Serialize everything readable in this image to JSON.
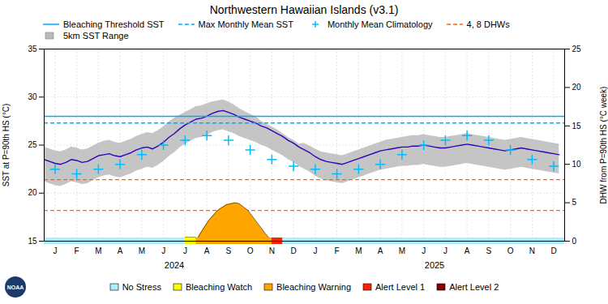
{
  "chart_data": {
    "type": "line",
    "title": "Northwestern Hawaiian Islands (v3.1)",
    "ylabel": "SST at P=90th HS (°C)",
    "y2label": "DHW from P=90th HS (°C week)",
    "xlim": [
      0,
      24
    ],
    "xticks": [
      {
        "value": 0.5,
        "label": "J"
      },
      {
        "value": 1.5,
        "label": "F"
      },
      {
        "value": 2.5,
        "label": "M"
      },
      {
        "value": 3.5,
        "label": "A"
      },
      {
        "value": 4.5,
        "label": "M"
      },
      {
        "value": 5.5,
        "label": "J"
      },
      {
        "value": 6.5,
        "label": "J"
      },
      {
        "value": 7.5,
        "label": "A"
      },
      {
        "value": 8.5,
        "label": "S"
      },
      {
        "value": 9.5,
        "label": "O"
      },
      {
        "value": 10.5,
        "label": "N"
      },
      {
        "value": 11.5,
        "label": "D"
      },
      {
        "value": 12.5,
        "label": "J"
      },
      {
        "value": 13.5,
        "label": "F"
      },
      {
        "value": 14.5,
        "label": "M"
      },
      {
        "value": 15.5,
        "label": "A"
      },
      {
        "value": 16.5,
        "label": "M"
      },
      {
        "value": 17.5,
        "label": "J"
      },
      {
        "value": 18.5,
        "label": "J"
      },
      {
        "value": 19.5,
        "label": "A"
      },
      {
        "value": 20.5,
        "label": "S"
      },
      {
        "value": 21.5,
        "label": "O"
      },
      {
        "value": 22.5,
        "label": "N"
      },
      {
        "value": 23.5,
        "label": "D"
      }
    ],
    "ylim": [
      15,
      35
    ],
    "yticks": [
      15,
      20,
      25,
      30,
      35
    ],
    "y2lim": [
      0,
      25
    ],
    "y2ticks": [
      0,
      5,
      10,
      15,
      20,
      25
    ],
    "grid": true,
    "legend": "top",
    "annotations": [
      {
        "text": "2024",
        "x": 6
      },
      {
        "text": "2025",
        "x": 18
      },
      {
        "text": "NOAA"
      }
    ],
    "series": [
      {
        "name": "Bleaching Threshold SST",
        "type": "hline",
        "color": "#00AAFF",
        "line_style": "solid",
        "values": [
          28.0
        ]
      },
      {
        "name": "Max Monthly Mean SST",
        "type": "hline",
        "color": "#00AAFF",
        "line_style": "dashed",
        "values": [
          27.3
        ]
      },
      {
        "name": "Monthly Mean Climatology",
        "type": "scatter",
        "marker": "plus",
        "color": "#00BBFF",
        "x": [
          0.5,
          1.5,
          2.5,
          3.5,
          4.5,
          5.5,
          6.5,
          7.5,
          8.5,
          9.5,
          10.5,
          11.5,
          12.5,
          13.5,
          14.5,
          15.5,
          16.5,
          17.5,
          18.5,
          19.5,
          20.5,
          21.5,
          22.5,
          23.5
        ],
        "values": [
          22.5,
          22.0,
          22.5,
          23.0,
          24.0,
          25.0,
          25.5,
          26.0,
          25.5,
          24.5,
          23.5,
          22.8,
          22.5,
          22.0,
          22.5,
          23.0,
          24.0,
          25.0,
          25.5,
          26.0,
          25.5,
          24.5,
          23.5,
          22.8
        ]
      },
      {
        "name": "4, 8 DHWs",
        "type": "hline",
        "axis": "y2",
        "color": "#FF6600",
        "line_style": "dashed",
        "values": [
          8,
          4
        ]
      },
      {
        "name": "5km SST Range",
        "type": "area",
        "color": "#BBBBBB",
        "x": [
          0,
          0.25,
          0.5,
          0.75,
          1,
          1.25,
          1.5,
          1.75,
          2,
          2.25,
          2.5,
          2.75,
          3,
          3.25,
          3.5,
          3.75,
          4,
          4.25,
          4.5,
          4.75,
          5,
          5.25,
          5.5,
          5.75,
          6,
          6.25,
          6.5,
          6.75,
          7,
          7.25,
          7.5,
          7.75,
          8,
          8.25,
          8.5,
          8.75,
          9,
          9.25,
          9.5,
          9.75,
          10,
          10.25,
          10.5,
          10.75,
          11,
          11.25,
          11.5,
          11.75,
          12,
          12.25,
          12.5,
          12.75,
          13,
          13.25,
          13.5,
          13.75,
          14,
          14.25,
          14.5,
          14.75,
          15,
          15.25,
          15.5,
          15.75,
          16,
          16.25,
          16.5,
          16.75,
          17,
          17.25,
          17.5,
          17.75,
          18,
          18.25,
          18.5,
          18.75,
          19,
          19.25,
          19.5,
          19.75,
          20,
          20.25,
          20.5,
          20.75,
          21,
          21.25,
          21.5,
          21.75,
          22,
          22.25,
          22.5,
          22.75,
          23,
          23.25,
          23.5,
          23.75
        ],
        "upper": [
          24.8,
          24.6,
          24.4,
          24.3,
          24.5,
          24.8,
          24.7,
          24.5,
          24.6,
          24.9,
          25.2,
          25.4,
          25.5,
          25.3,
          25.2,
          25.4,
          25.6,
          25.9,
          26.1,
          26.3,
          26.2,
          26.5,
          26.9,
          27.4,
          27.8,
          28.1,
          28.4,
          28.7,
          29.0,
          29.1,
          29.3,
          29.5,
          29.6,
          29.7,
          29.5,
          29.2,
          28.8,
          28.5,
          28.2,
          28.0,
          27.5,
          27.2,
          26.9,
          26.6,
          26.2,
          25.8,
          25.5,
          25.1,
          25.2,
          24.9,
          24.6,
          24.3,
          24.2,
          24.1,
          24.0,
          23.9,
          24.1,
          24.3,
          24.5,
          24.7,
          24.9,
          25.1,
          25.3,
          25.5,
          25.6,
          25.7,
          25.8,
          25.9,
          26.0,
          26.0,
          26.1,
          26.0,
          25.9,
          25.8,
          25.8,
          25.9,
          26.0,
          26.1,
          26.2,
          26.1,
          26.0,
          25.9,
          25.8,
          25.7,
          25.6,
          25.5,
          25.6,
          25.7,
          25.8,
          25.7,
          25.6,
          25.5,
          25.4,
          25.3,
          25.2,
          25.1
        ],
        "lower": [
          21.2,
          21.0,
          20.8,
          20.7,
          20.9,
          21.2,
          21.1,
          20.9,
          21.0,
          21.3,
          21.6,
          21.8,
          21.9,
          21.7,
          21.6,
          21.8,
          22.0,
          22.3,
          22.5,
          22.7,
          22.6,
          22.9,
          23.3,
          23.8,
          24.2,
          24.7,
          25.1,
          25.4,
          25.7,
          25.8,
          26.0,
          26.3,
          26.5,
          26.6,
          26.4,
          26.2,
          25.9,
          25.7,
          25.5,
          25.3,
          25.0,
          24.8,
          24.5,
          24.2,
          23.9,
          23.5,
          23.2,
          22.8,
          22.5,
          22.2,
          21.8,
          21.5,
          21.3,
          21.2,
          21.1,
          21.0,
          21.2,
          21.4,
          21.6,
          21.8,
          22.0,
          22.2,
          22.4,
          22.5,
          22.6,
          22.7,
          22.8,
          22.8,
          22.9,
          22.9,
          23.0,
          22.9,
          22.8,
          22.7,
          22.7,
          22.8,
          22.9,
          23.0,
          23.1,
          23.0,
          22.9,
          22.8,
          22.7,
          22.6,
          22.5,
          22.4,
          22.5,
          22.6,
          22.7,
          22.6,
          22.5,
          22.4,
          22.3,
          22.2,
          22.1,
          22.0
        ]
      },
      {
        "type": "line",
        "color": "#3300BB",
        "x": [
          0,
          0.25,
          0.5,
          0.75,
          1,
          1.25,
          1.5,
          1.75,
          2,
          2.25,
          2.5,
          2.75,
          3,
          3.25,
          3.5,
          3.75,
          4,
          4.25,
          4.5,
          4.75,
          5,
          5.25,
          5.5,
          5.75,
          6,
          6.25,
          6.5,
          6.75,
          7,
          7.25,
          7.5,
          7.75,
          8,
          8.25,
          8.5,
          8.75,
          9,
          9.25,
          9.5,
          9.75,
          10,
          10.25,
          10.5,
          10.75,
          11,
          11.25,
          11.5,
          11.75,
          12,
          12.25,
          12.5,
          12.75,
          13,
          13.25,
          13.5,
          13.75,
          14,
          14.25,
          14.5,
          14.75,
          15,
          15.25,
          15.5,
          15.75,
          16,
          16.25,
          16.5,
          16.75,
          17,
          17.25,
          17.5,
          17.75,
          18,
          18.25,
          18.5,
          18.75,
          19,
          19.25,
          19.5,
          19.75,
          20,
          20.25,
          20.5,
          20.75,
          21,
          21.25,
          21.5,
          21.75,
          22,
          22.25,
          22.5,
          22.75,
          23,
          23.25,
          23.5,
          23.75
        ],
        "values": [
          23.5,
          23.3,
          23.1,
          23.0,
          23.2,
          23.5,
          23.4,
          23.2,
          23.3,
          23.6,
          23.9,
          24.0,
          24.1,
          23.9,
          23.8,
          24.0,
          24.2,
          24.5,
          24.7,
          24.8,
          24.6,
          24.9,
          25.3,
          25.8,
          26.2,
          26.7,
          27.1,
          27.4,
          27.7,
          27.8,
          28.0,
          28.3,
          28.5,
          28.6,
          28.4,
          28.2,
          27.9,
          27.7,
          27.5,
          27.3,
          27.0,
          26.8,
          26.5,
          26.2,
          25.9,
          25.5,
          25.2,
          24.8,
          24.5,
          24.2,
          23.8,
          23.5,
          23.3,
          23.2,
          23.1,
          23.0,
          23.2,
          23.4,
          23.6,
          23.8,
          24.0,
          24.2,
          24.4,
          24.5,
          24.6,
          24.7,
          24.8,
          24.8,
          24.9,
          24.9,
          25.0,
          24.9,
          24.8,
          24.7,
          24.7,
          24.8,
          24.9,
          25.0,
          25.1,
          25.0,
          24.9,
          24.8,
          24.7,
          24.6,
          24.5,
          24.4,
          24.5,
          24.6,
          24.7,
          24.6,
          24.5,
          24.4,
          24.3,
          24.2,
          24.1,
          24.0
        ]
      }
    ],
    "stress_levels": [
      {
        "name": "No Stress",
        "color": "#AAEEFF",
        "ranges": [
          [
            0,
            6.5
          ],
          [
            11.0,
            24
          ]
        ]
      },
      {
        "name": "Bleaching Watch",
        "color": "#FFFF00",
        "ranges": [
          [
            6.5,
            7.0
          ]
        ],
        "x": [
          6.5,
          7.0
        ],
        "values": [
          15.4,
          15.4
        ]
      },
      {
        "name": "Bleaching Warning",
        "color": "#FFA500",
        "ranges": [
          [
            7.0,
            10.5
          ]
        ],
        "x": [
          7.0,
          7.2,
          7.6,
          8.0,
          8.4,
          8.8,
          9.0,
          9.4,
          9.8,
          10.2,
          10.5
        ],
        "values": [
          15.0,
          15.8,
          17.2,
          18.2,
          18.8,
          19.0,
          18.9,
          18.2,
          17.0,
          15.8,
          15.0
        ]
      },
      {
        "name": "Alert Level 1",
        "color": "#FF2200",
        "ranges": [
          [
            10.5,
            11.0
          ]
        ],
        "x": [
          10.5,
          10.8,
          11.0
        ],
        "values": [
          15.0,
          15.3,
          15.0
        ]
      },
      {
        "name": "Alert Level 2",
        "color": "#880000",
        "ranges": []
      }
    ]
  }
}
